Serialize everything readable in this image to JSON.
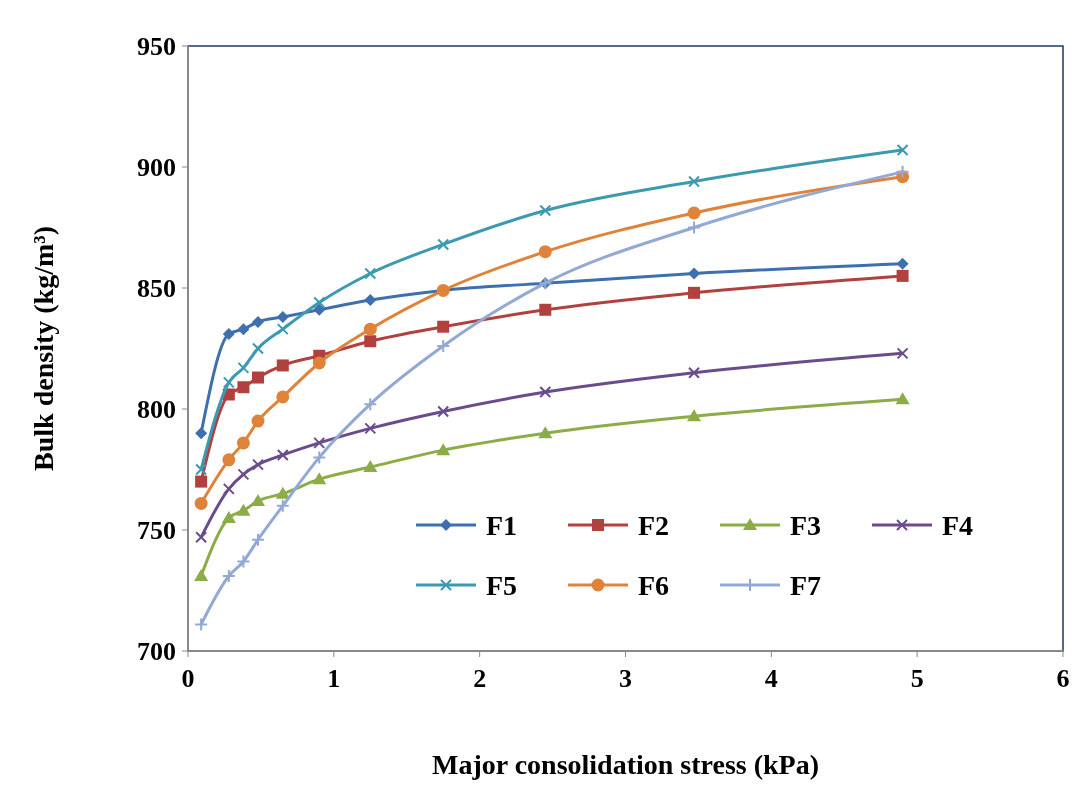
{
  "chart_data": {
    "type": "line",
    "xlabel": "Major consolidation stress (kPa)",
    "ylabel": "Bulk density (kg/m³)",
    "xlim": [
      0,
      6
    ],
    "xticks": [
      0,
      1,
      2,
      3,
      4,
      5,
      6
    ],
    "ylim": [
      700,
      950
    ],
    "yticks": [
      700,
      750,
      800,
      850,
      900,
      950
    ],
    "grid": false,
    "legend": "bottom right",
    "x": [
      0.09,
      0.28,
      0.38,
      0.48,
      0.65,
      0.9,
      1.25,
      1.75,
      2.45,
      3.47,
      4.9
    ],
    "series": [
      {
        "name": "F1",
        "color": "#3e6fae",
        "marker": "diamond",
        "values": [
          790,
          831,
          833,
          836,
          838,
          841,
          845,
          849,
          852,
          856,
          860
        ]
      },
      {
        "name": "F2",
        "color": "#b0413e",
        "marker": "square",
        "values": [
          770,
          806,
          809,
          813,
          818,
          822,
          828,
          834,
          841,
          848,
          855
        ]
      },
      {
        "name": "F3",
        "color": "#8bac46",
        "marker": "triangle",
        "values": [
          731,
          755,
          758,
          762,
          765,
          771,
          776,
          783,
          790,
          797,
          804
        ]
      },
      {
        "name": "F4",
        "color": "#6a4c8c",
        "marker": "cross",
        "values": [
          747,
          767,
          773,
          777,
          781,
          786,
          792,
          799,
          807,
          815,
          823
        ]
      },
      {
        "name": "F5",
        "color": "#3b9ab0",
        "marker": "cross",
        "values": [
          775,
          811,
          817,
          825,
          833,
          844,
          856,
          868,
          882,
          894,
          907
        ]
      },
      {
        "name": "F6",
        "color": "#e0833a",
        "marker": "circle",
        "values": [
          761,
          779,
          786,
          795,
          805,
          819,
          833,
          849,
          865,
          881,
          896
        ]
      },
      {
        "name": "F7",
        "color": "#92a9d4",
        "marker": "plus",
        "values": [
          711,
          731,
          737,
          746,
          760,
          780,
          802,
          826,
          852,
          875,
          898
        ]
      }
    ]
  }
}
